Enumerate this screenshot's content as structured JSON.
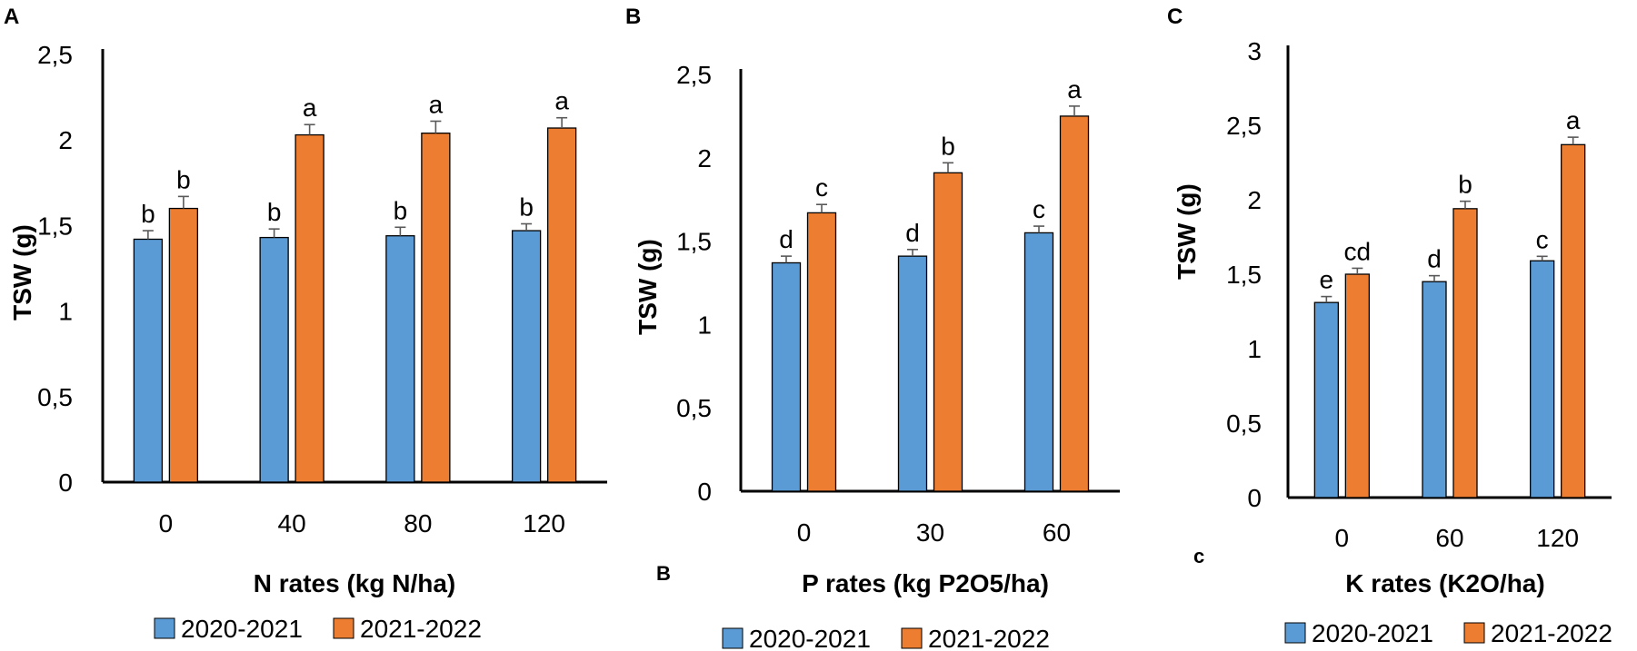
{
  "colors": {
    "series1": "#5b9bd5",
    "series2": "#ed7d31",
    "axis": "#000000",
    "errorbar": "#595959"
  },
  "chart_data": [
    {
      "type": "bar",
      "panel": "A",
      "title": "",
      "xlabel": "N rates (kg N/ha)",
      "ylabel": "TSW (g)",
      "ylim": [
        0,
        2.5
      ],
      "yticks": [
        "0",
        "0,5",
        "1",
        "1,5",
        "2",
        "2,5"
      ],
      "categories": [
        "0",
        "40",
        "80",
        "120"
      ],
      "series": [
        {
          "name": "2020-2021",
          "values": [
            1.42,
            1.43,
            1.44,
            1.47
          ],
          "errors": [
            0.05,
            0.05,
            0.05,
            0.04
          ],
          "labels": [
            "b",
            "b",
            "b",
            "b"
          ]
        },
        {
          "name": "2021-2022",
          "values": [
            1.6,
            2.03,
            2.04,
            2.07
          ],
          "errors": [
            0.07,
            0.06,
            0.07,
            0.06
          ],
          "labels": [
            "b",
            "a",
            "a",
            "a"
          ]
        }
      ],
      "legend": [
        "2020-2021",
        "2021-2022"
      ],
      "legend_position": "bottom",
      "grid": false
    },
    {
      "type": "bar",
      "panel": "B",
      "title": "",
      "xlabel": "P rates (kg P2O5/ha)",
      "ylabel": "TSW (g)",
      "ylim": [
        0,
        2.5
      ],
      "yticks": [
        "0",
        "0,5",
        "1",
        "1,5",
        "2",
        "2,5"
      ],
      "categories": [
        "0",
        "30",
        "60"
      ],
      "series": [
        {
          "name": "2020-2021",
          "values": [
            1.37,
            1.41,
            1.55
          ],
          "errors": [
            0.04,
            0.04,
            0.04
          ],
          "labels": [
            "d",
            "d",
            "c"
          ]
        },
        {
          "name": "2021-2022",
          "values": [
            1.67,
            1.91,
            2.25
          ],
          "errors": [
            0.05,
            0.06,
            0.06
          ],
          "labels": [
            "c",
            "b",
            "a"
          ]
        }
      ],
      "legend": [
        "2020-2021",
        "2021-2022"
      ],
      "legend_position": "bottom",
      "stray_label": "B",
      "grid": false
    },
    {
      "type": "bar",
      "panel": "C",
      "title": "",
      "xlabel": "K rates (K2O/ha)",
      "ylabel": "TSW (g)",
      "ylim": [
        0,
        3
      ],
      "yticks": [
        "0",
        "0,5",
        "1",
        "1,5",
        "2",
        "2,5",
        "3"
      ],
      "categories": [
        "0",
        "60",
        "120"
      ],
      "series": [
        {
          "name": "2020-2021",
          "values": [
            1.31,
            1.45,
            1.59
          ],
          "errors": [
            0.04,
            0.04,
            0.03
          ],
          "labels": [
            "e",
            "d",
            "c"
          ]
        },
        {
          "name": "2021-2022",
          "values": [
            1.5,
            1.94,
            2.37
          ],
          "errors": [
            0.04,
            0.05,
            0.05
          ],
          "labels": [
            "cd",
            "b",
            "a"
          ]
        }
      ],
      "legend": [
        "2020-2021",
        "2021-2022"
      ],
      "legend_position": "bottom",
      "stray_label": "c",
      "grid": false
    }
  ]
}
